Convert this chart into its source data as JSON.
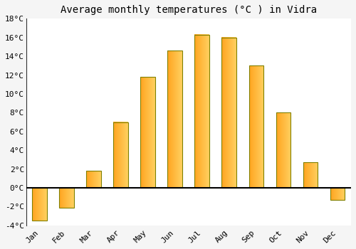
{
  "title": "Average monthly temperatures (°C ) in Vidra",
  "months": [
    "Jan",
    "Feb",
    "Mar",
    "Apr",
    "May",
    "Jun",
    "Jul",
    "Aug",
    "Sep",
    "Oct",
    "Nov",
    "Dec"
  ],
  "values": [
    -3.5,
    -2.1,
    1.8,
    7.0,
    11.8,
    14.6,
    16.3,
    16.0,
    13.0,
    8.0,
    2.7,
    -1.3
  ],
  "bar_color_left": "#FFA520",
  "bar_color_right": "#FFD060",
  "bar_edge_color": "#888820",
  "ylim": [
    -4,
    18
  ],
  "yticks": [
    -4,
    -2,
    0,
    2,
    4,
    6,
    8,
    10,
    12,
    14,
    16,
    18
  ],
  "ytick_labels": [
    "-4°C",
    "-2°C",
    "0°C",
    "2°C",
    "4°C",
    "6°C",
    "8°C",
    "10°C",
    "12°C",
    "14°C",
    "16°C",
    "18°C"
  ],
  "background_color": "#F5F5F5",
  "plot_bg_color": "#FFFFFF",
  "grid_color": "#FFFFFF",
  "zero_line_color": "#000000",
  "title_fontsize": 10,
  "tick_fontsize": 8,
  "bar_width": 0.55
}
